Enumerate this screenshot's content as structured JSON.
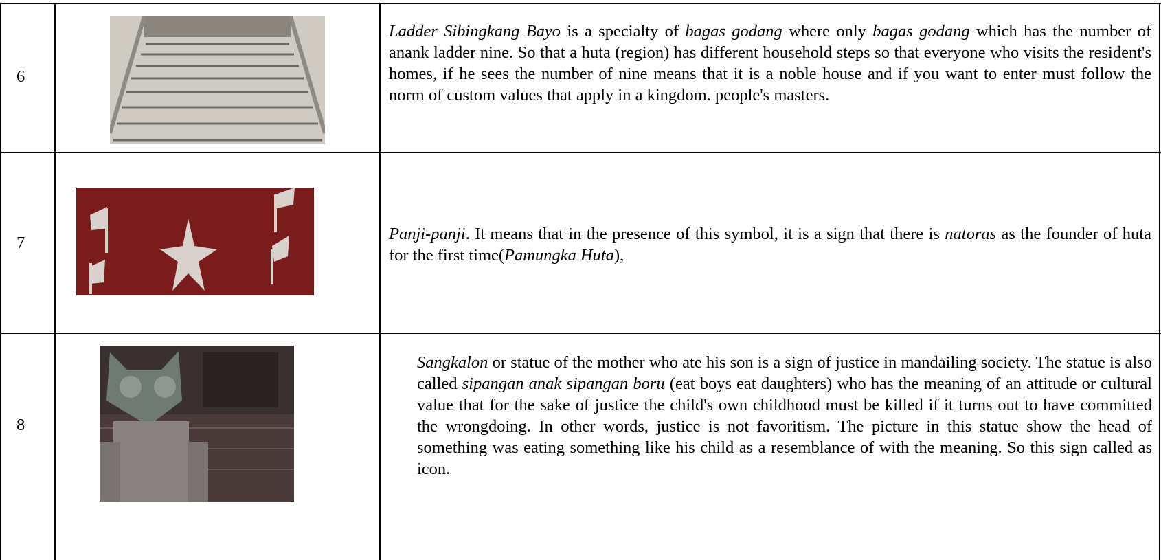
{
  "table": {
    "rows": [
      {
        "number": "6",
        "description": [
          {
            "text": "Ladder Sibingkang Bayo",
            "italic": true
          },
          {
            "text": " is a specialty of ",
            "italic": false
          },
          {
            "text": "bagas godang",
            "italic": true
          },
          {
            "text": " where only ",
            "italic": false
          },
          {
            "text": "bagas godang",
            "italic": true
          },
          {
            "text": " which has the number of anank ladder nine. So that a huta (region) has different household steps so that everyone who visits the resident's homes, if he sees the number of nine means that it is a noble house and if you want to enter must follow the norm of custom values that apply in a kingdom.  people's masters.",
            "italic": false
          }
        ]
      },
      {
        "number": "7",
        "description": [
          {
            "text": "Panji-panji",
            "italic": true
          },
          {
            "text": ". It means that in the presence of this symbol, it is a sign that there is ",
            "italic": false
          },
          {
            "text": "natoras",
            "italic": true
          },
          {
            "text": " as the founder of huta for the first time(",
            "italic": false
          },
          {
            "text": "Pamungka Huta",
            "italic": true
          },
          {
            "text": "),",
            "italic": false
          }
        ]
      },
      {
        "number": "8",
        "description": [
          {
            "text": "Sangkalon",
            "italic": true
          },
          {
            "text": " or statue of the mother who ate his son is a sign of justice in mandailing society. The statue is also called ",
            "italic": false
          },
          {
            "text": "sipangan anak sipangan boru",
            "italic": true
          },
          {
            "text": " (eat boys eat daughters) who has the meaning of an attitude or cultural value that for the sake of justice the child's own childhood must be killed if it turns out to have committed the wrongdoing. In other words, justice is not favoritism. The picture in this statue show the head of something was eating something like his child as a resemblance of with the meaning. So this sign called as icon.",
            "italic": false
          }
        ]
      }
    ]
  }
}
